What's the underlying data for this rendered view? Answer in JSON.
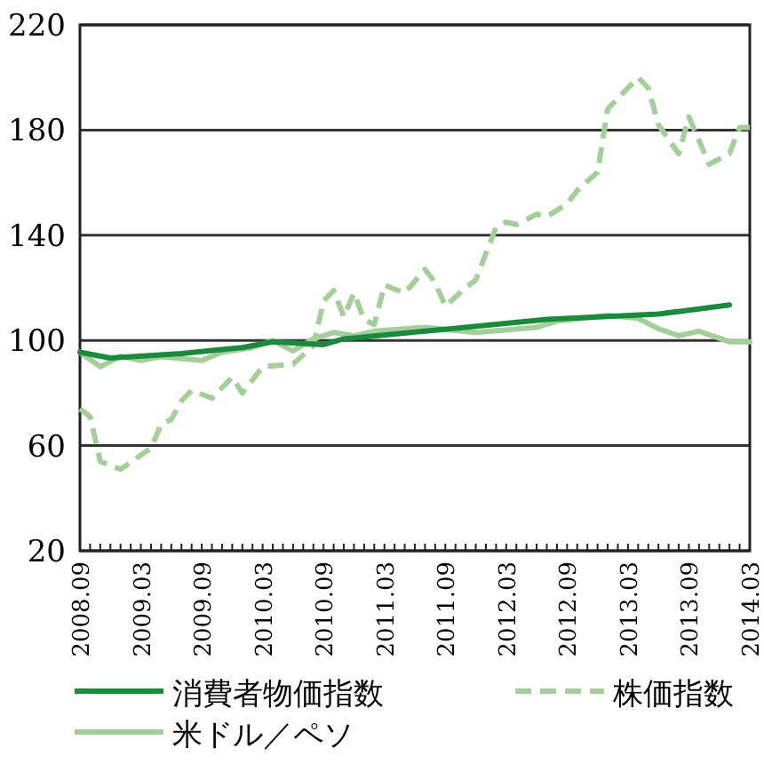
{
  "chart_data": {
    "type": "line",
    "legend": "bottom",
    "grid": "y",
    "xlim": [
      "2008-09",
      "2014-03"
    ],
    "ylim": [
      20,
      220
    ],
    "yticks": [
      20,
      60,
      100,
      140,
      180,
      220
    ],
    "xticks": [
      {
        "value": "2008-09",
        "label": "2008.09"
      },
      {
        "value": "2008-10",
        "label": null
      },
      {
        "value": "2008-11",
        "label": null
      },
      {
        "value": "2008-12",
        "label": null
      },
      {
        "value": "2009-01",
        "label": null
      },
      {
        "value": "2009-02",
        "label": null
      },
      {
        "value": "2009-03",
        "label": "2009.03"
      },
      {
        "value": "2009-04",
        "label": null
      },
      {
        "value": "2009-05",
        "label": null
      },
      {
        "value": "2009-06",
        "label": null
      },
      {
        "value": "2009-07",
        "label": null
      },
      {
        "value": "2009-08",
        "label": null
      },
      {
        "value": "2009-09",
        "label": "2009.09"
      },
      {
        "value": "2009-10",
        "label": null
      },
      {
        "value": "2009-11",
        "label": null
      },
      {
        "value": "2009-12",
        "label": null
      },
      {
        "value": "2010-01",
        "label": null
      },
      {
        "value": "2010-02",
        "label": null
      },
      {
        "value": "2010-03",
        "label": "2010.03"
      },
      {
        "value": "2010-04",
        "label": null
      },
      {
        "value": "2010-05",
        "label": null
      },
      {
        "value": "2010-06",
        "label": null
      },
      {
        "value": "2010-07",
        "label": null
      },
      {
        "value": "2010-08",
        "label": null
      },
      {
        "value": "2010-09",
        "label": "2010.09"
      },
      {
        "value": "2010-10",
        "label": null
      },
      {
        "value": "2010-11",
        "label": null
      },
      {
        "value": "2010-12",
        "label": null
      },
      {
        "value": "2011-01",
        "label": null
      },
      {
        "value": "2011-02",
        "label": null
      },
      {
        "value": "2011-03",
        "label": "2011.03"
      },
      {
        "value": "2011-04",
        "label": null
      },
      {
        "value": "2011-05",
        "label": null
      },
      {
        "value": "2011-06",
        "label": null
      },
      {
        "value": "2011-07",
        "label": null
      },
      {
        "value": "2011-08",
        "label": null
      },
      {
        "value": "2011-09",
        "label": "2011.09"
      },
      {
        "value": "2011-10",
        "label": null
      },
      {
        "value": "2011-11",
        "label": null
      },
      {
        "value": "2011-12",
        "label": null
      },
      {
        "value": "2012-01",
        "label": null
      },
      {
        "value": "2012-02",
        "label": null
      },
      {
        "value": "2012-03",
        "label": "2012.03"
      },
      {
        "value": "2012-04",
        "label": null
      },
      {
        "value": "2012-05",
        "label": null
      },
      {
        "value": "2012-06",
        "label": null
      },
      {
        "value": "2012-07",
        "label": null
      },
      {
        "value": "2012-08",
        "label": null
      },
      {
        "value": "2012-09",
        "label": "2012.09"
      },
      {
        "value": "2012-10",
        "label": null
      },
      {
        "value": "2012-11",
        "label": null
      },
      {
        "value": "2012-12",
        "label": null
      },
      {
        "value": "2013-01",
        "label": null
      },
      {
        "value": "2013-02",
        "label": null
      },
      {
        "value": "2013-03",
        "label": "2013.03"
      },
      {
        "value": "2013-04",
        "label": null
      },
      {
        "value": "2013-05",
        "label": null
      },
      {
        "value": "2013-06",
        "label": null
      },
      {
        "value": "2013-07",
        "label": null
      },
      {
        "value": "2013-08",
        "label": null
      },
      {
        "value": "2013-09",
        "label": "2013.09"
      },
      {
        "value": "2013-10",
        "label": null
      },
      {
        "value": "2013-11",
        "label": null
      },
      {
        "value": "2013-12",
        "label": null
      },
      {
        "value": "2014-01",
        "label": null
      },
      {
        "value": "2014-02",
        "label": null
      },
      {
        "value": "2014-03",
        "label": "2014.03"
      }
    ],
    "series": [
      {
        "name": "消費者物価指数",
        "color": "#1a8a3c",
        "line_style": "solid",
        "x": [
          "2008-09",
          "2008-12",
          "2009-07",
          "2010-01",
          "2010-04",
          "2010-09",
          "2010-11",
          "2011-07",
          "2012-07",
          "2013-06",
          "2014-01"
        ],
        "values": [
          95.5,
          93.3,
          95,
          97.3,
          99.5,
          98.4,
          100.6,
          103.5,
          108,
          110,
          113.5
        ]
      },
      {
        "name": "株価指数",
        "color": "#a5cf9a",
        "line_style": "dashed",
        "x": [
          "2008-09",
          "2008-10",
          "2008-11",
          "2009-01",
          "2009-04",
          "2009-05",
          "2009-06",
          "2009-07",
          "2009-08",
          "2009-10",
          "2009-12",
          "2010-01",
          "2010-03",
          "2010-06",
          "2010-08",
          "2010-09",
          "2010-10",
          "2010-11",
          "2010-12",
          "2011-01",
          "2011-02",
          "2011-03",
          "2011-05",
          "2011-07",
          "2011-08",
          "2011-09",
          "2011-11",
          "2011-12",
          "2012-02",
          "2012-03",
          "2012-04",
          "2012-06",
          "2012-07",
          "2012-09",
          "2012-10",
          "2012-12",
          "2013-01",
          "2013-04",
          "2013-05",
          "2013-06",
          "2013-08",
          "2013-09",
          "2013-11",
          "2014-01",
          "2014-02",
          "2014-03"
        ],
        "values": [
          74,
          71,
          54,
          51,
          59,
          68,
          70,
          77,
          81,
          78,
          86,
          80,
          90,
          91,
          98,
          115,
          119,
          109,
          118,
          108,
          106,
          121,
          118,
          127,
          122,
          113,
          120,
          123,
          143,
          145,
          144,
          148,
          147,
          152,
          157,
          164,
          188,
          200,
          196,
          182,
          171,
          185,
          167,
          171,
          181,
          181
        ]
      },
      {
        "name": "米ドル／ペソ",
        "color": "#a5cf9a",
        "line_style": "solid",
        "x": [
          "2008-09",
          "2008-11",
          "2009-01",
          "2009-03",
          "2009-05",
          "2009-09",
          "2009-11",
          "2010-02",
          "2010-04",
          "2010-06",
          "2010-08",
          "2010-10",
          "2010-12",
          "2011-02",
          "2011-07",
          "2011-12",
          "2012-06",
          "2012-08",
          "2013-01",
          "2013-04",
          "2013-06",
          "2013-08",
          "2013-10",
          "2014-01",
          "2014-03"
        ],
        "values": [
          95.5,
          90,
          94,
          92.4,
          93.8,
          92.4,
          95.5,
          97.3,
          100,
          96,
          100.6,
          103,
          101.8,
          103.5,
          105,
          103,
          105,
          107.3,
          109.5,
          108.4,
          104.4,
          101.8,
          103.5,
          99.5,
          99.5
        ]
      }
    ]
  }
}
